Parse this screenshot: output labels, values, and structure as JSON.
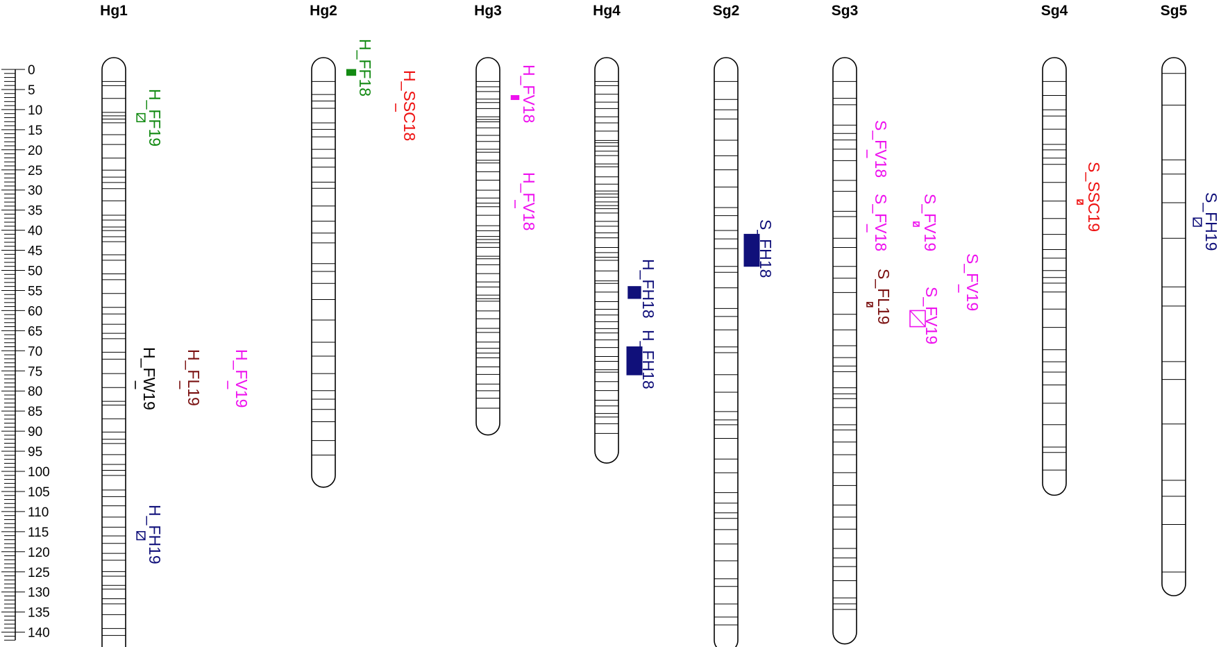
{
  "scale": {
    "ticks": [
      0,
      5,
      10,
      15,
      20,
      25,
      30,
      35,
      40,
      45,
      50,
      55,
      60,
      65,
      70,
      75,
      80,
      85,
      90,
      95,
      100,
      105,
      110,
      115,
      120,
      125,
      130,
      135,
      140
    ]
  },
  "colors": {
    "green": "#138a13",
    "red": "#ee1111",
    "magenta": "#ee11ee",
    "navy": "#10107a",
    "black": "#000000",
    "darkred": "#7a1010"
  },
  "linkage_groups": [
    {
      "name": "Hg1",
      "length": 144,
      "marker_density": "dense",
      "qtls": [
        {
          "label": "H_FF19",
          "color": "green",
          "start": 11,
          "end": 13,
          "style": "hatch"
        },
        {
          "label": "H_FW19",
          "color": "black",
          "start": 78,
          "end": 79,
          "style": "line"
        },
        {
          "label": "H_FL19",
          "color": "darkred",
          "start": 78,
          "end": 79,
          "style": "line"
        },
        {
          "label": "H_FV19",
          "color": "magenta",
          "start": 78,
          "end": 79,
          "style": "line"
        },
        {
          "label": "H_FH19",
          "color": "navy",
          "start": 115,
          "end": 117,
          "style": "hatch"
        }
      ]
    },
    {
      "name": "Hg2",
      "length": 101,
      "marker_density": "medium",
      "qtls": [
        {
          "label": "H_FF18",
          "color": "green",
          "start": 0,
          "end": 1.5,
          "style": "solid"
        },
        {
          "label": "H_SSC18",
          "color": "red",
          "start": 9,
          "end": 10,
          "style": "line"
        }
      ]
    },
    {
      "name": "Hg3",
      "length": 88,
      "marker_density": "very dense",
      "qtls": [
        {
          "label": "H_FV18",
          "color": "magenta",
          "start": 6.5,
          "end": 7.5,
          "style": "solid"
        },
        {
          "label": "H_FV18",
          "color": "magenta",
          "start": 33,
          "end": 34,
          "style": "line"
        }
      ]
    },
    {
      "name": "Hg4",
      "length": 95,
      "marker_density": "very dense",
      "qtls": [
        {
          "label": "H_FH18",
          "color": "navy",
          "start": 54,
          "end": 57,
          "style": "solid"
        },
        {
          "label": "H_FH18",
          "color": "navy",
          "start": 69,
          "end": 76,
          "style": "solid"
        }
      ]
    },
    {
      "name": "Sg2",
      "length": 142,
      "marker_density": "medium",
      "qtls": [
        {
          "label": "S_FH18",
          "color": "navy",
          "start": 41,
          "end": 49,
          "style": "solid"
        }
      ]
    },
    {
      "name": "Sg3",
      "length": 140,
      "marker_density": "medium",
      "qtls": [
        {
          "label": "S_FV18",
          "color": "magenta",
          "start": 20.5,
          "end": 21.5,
          "style": "line"
        },
        {
          "label": "S_FV18",
          "color": "magenta",
          "start": 39,
          "end": 40,
          "style": "line"
        },
        {
          "label": "S_FL19",
          "color": "darkred",
          "start": 58,
          "end": 59,
          "style": "hatch"
        },
        {
          "label": "S_FV19",
          "color": "magenta",
          "start": 38,
          "end": 39,
          "style": "hatch"
        },
        {
          "label": "S_FV19",
          "color": "magenta",
          "start": 54,
          "end": 55,
          "style": "line"
        },
        {
          "label": "S_FV19",
          "color": "magenta",
          "start": 60,
          "end": 64,
          "style": "hatch"
        }
      ]
    },
    {
      "name": "Sg4",
      "length": 103,
      "marker_density": "medium",
      "qtls": [
        {
          "label": "S_SSC19",
          "color": "red",
          "start": 32.5,
          "end": 33.5,
          "style": "hatch"
        }
      ]
    },
    {
      "name": "Sg5",
      "length": 128,
      "marker_density": "sparse",
      "qtls": [
        {
          "label": "S_FH19",
          "color": "navy",
          "start": 37,
          "end": 39,
          "style": "hatch"
        }
      ]
    }
  ]
}
